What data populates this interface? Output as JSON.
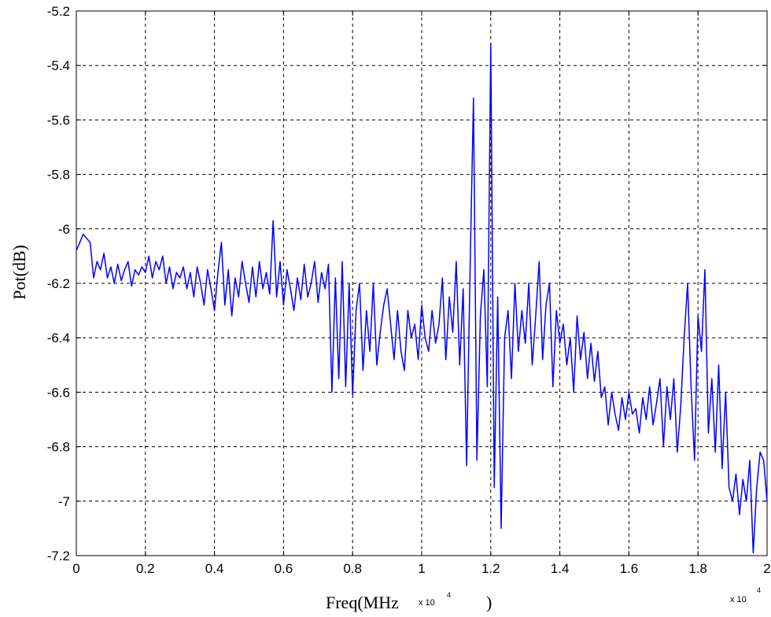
{
  "chart_data": {
    "type": "line",
    "title": "",
    "xlabel_left": "Freq(MHz",
    "xlabel_mid_exp": "x 10",
    "xlabel_mid_exp_power": "4",
    "xlabel_right": ")",
    "x_multiplier_label": "x 10",
    "x_multiplier_power": "4",
    "ylabel": "Pot(dB)",
    "xlim": [
      0,
      2
    ],
    "ylim": [
      -7.2,
      -5.2
    ],
    "grid": true,
    "grid_style": "dashed",
    "x_ticks": [
      "0",
      "0.2",
      "0.4",
      "0.6",
      "0.8",
      "1",
      "1.2",
      "1.4",
      "1.6",
      "1.8",
      "2"
    ],
    "y_ticks": [
      "-5.2",
      "-5.4",
      "-5.6",
      "-5.8",
      "-6",
      "-6.2",
      "-6.4",
      "-6.6",
      "-6.8",
      "-7",
      "-7.2"
    ],
    "line_color": "#0000ff",
    "series": [
      {
        "x": [
          0,
          0.02,
          0.04,
          0.05,
          0.06,
          0.07,
          0.08,
          0.09,
          0.1,
          0.11,
          0.12,
          0.13,
          0.14,
          0.15,
          0.16,
          0.17,
          0.18,
          0.19,
          0.2,
          0.21,
          0.22,
          0.23,
          0.24,
          0.25,
          0.26,
          0.27,
          0.28,
          0.29,
          0.3,
          0.31,
          0.32,
          0.33,
          0.34,
          0.35,
          0.36,
          0.37,
          0.38,
          0.39,
          0.4,
          0.41,
          0.42,
          0.43,
          0.44,
          0.45,
          0.46,
          0.47,
          0.48,
          0.49,
          0.5,
          0.51,
          0.52,
          0.53,
          0.54,
          0.55,
          0.56,
          0.57,
          0.58,
          0.59,
          0.6,
          0.61,
          0.62,
          0.63,
          0.64,
          0.65,
          0.66,
          0.67,
          0.68,
          0.69,
          0.7,
          0.71,
          0.72,
          0.73,
          0.74,
          0.75,
          0.76,
          0.77,
          0.78,
          0.79,
          0.8,
          0.81,
          0.82,
          0.83,
          0.84,
          0.85,
          0.86,
          0.87,
          0.88,
          0.89,
          0.9,
          0.91,
          0.92,
          0.93,
          0.94,
          0.95,
          0.96,
          0.97,
          0.98,
          0.99,
          1.0,
          1.01,
          1.02,
          1.03,
          1.04,
          1.05,
          1.06,
          1.07,
          1.08,
          1.09,
          1.1,
          1.11,
          1.12,
          1.13,
          1.14,
          1.15,
          1.16,
          1.17,
          1.18,
          1.19,
          1.2,
          1.21,
          1.22,
          1.23,
          1.24,
          1.25,
          1.26,
          1.27,
          1.28,
          1.29,
          1.3,
          1.31,
          1.32,
          1.33,
          1.34,
          1.35,
          1.36,
          1.37,
          1.38,
          1.39,
          1.4,
          1.41,
          1.42,
          1.43,
          1.44,
          1.45,
          1.46,
          1.47,
          1.48,
          1.49,
          1.5,
          1.51,
          1.52,
          1.53,
          1.54,
          1.55,
          1.56,
          1.57,
          1.58,
          1.59,
          1.6,
          1.61,
          1.62,
          1.63,
          1.64,
          1.65,
          1.66,
          1.67,
          1.68,
          1.69,
          1.7,
          1.71,
          1.72,
          1.73,
          1.74,
          1.75,
          1.76,
          1.77,
          1.78,
          1.79,
          1.8,
          1.81,
          1.82,
          1.83,
          1.84,
          1.85,
          1.86,
          1.87,
          1.88,
          1.89,
          1.9,
          1.91,
          1.92,
          1.93,
          1.94,
          1.95,
          1.96,
          1.97,
          1.98,
          1.99,
          2.0
        ],
        "y": [
          -6.08,
          -6.02,
          -6.05,
          -6.18,
          -6.12,
          -6.15,
          -6.09,
          -6.18,
          -6.14,
          -6.2,
          -6.13,
          -6.19,
          -6.15,
          -6.12,
          -6.21,
          -6.15,
          -6.17,
          -6.14,
          -6.16,
          -6.1,
          -6.18,
          -6.12,
          -6.15,
          -6.1,
          -6.2,
          -6.14,
          -6.22,
          -6.16,
          -6.18,
          -6.14,
          -6.22,
          -6.16,
          -6.25,
          -6.14,
          -6.2,
          -6.28,
          -6.15,
          -6.22,
          -6.3,
          -6.16,
          -6.05,
          -6.28,
          -6.15,
          -6.32,
          -6.18,
          -6.25,
          -6.12,
          -6.2,
          -6.27,
          -6.14,
          -6.25,
          -6.12,
          -6.22,
          -6.16,
          -6.24,
          -5.97,
          -6.25,
          -6.12,
          -6.28,
          -6.15,
          -6.22,
          -6.3,
          -6.18,
          -6.26,
          -6.13,
          -6.25,
          -6.2,
          -6.12,
          -6.27,
          -6.16,
          -6.22,
          -6.13,
          -6.6,
          -6.18,
          -6.55,
          -6.12,
          -6.58,
          -6.2,
          -6.61,
          -6.3,
          -6.2,
          -6.52,
          -6.3,
          -6.45,
          -6.2,
          -6.5,
          -6.38,
          -6.28,
          -6.22,
          -6.35,
          -6.48,
          -6.3,
          -6.45,
          -6.52,
          -6.3,
          -6.4,
          -6.35,
          -6.48,
          -6.28,
          -6.4,
          -6.45,
          -6.3,
          -6.42,
          -6.35,
          -6.18,
          -6.48,
          -6.25,
          -6.38,
          -6.12,
          -6.5,
          -6.22,
          -6.87,
          -6.15,
          -5.52,
          -6.85,
          -6.32,
          -6.15,
          -6.58,
          -5.32,
          -6.95,
          -6.25,
          -7.1,
          -6.4,
          -6.3,
          -6.55,
          -6.2,
          -6.45,
          -6.3,
          -6.42,
          -6.2,
          -6.5,
          -6.32,
          -6.12,
          -6.48,
          -6.28,
          -6.2,
          -6.58,
          -6.3,
          -6.42,
          -6.35,
          -6.5,
          -6.4,
          -6.6,
          -6.32,
          -6.48,
          -6.38,
          -6.55,
          -6.42,
          -6.56,
          -6.45,
          -6.62,
          -6.58,
          -6.72,
          -6.6,
          -6.68,
          -6.74,
          -6.62,
          -6.7,
          -6.6,
          -6.68,
          -6.66,
          -6.75,
          -6.62,
          -6.7,
          -6.58,
          -6.72,
          -6.64,
          -6.55,
          -6.8,
          -6.58,
          -6.7,
          -6.55,
          -6.82,
          -6.65,
          -6.4,
          -6.2,
          -6.58,
          -6.85,
          -6.32,
          -6.45,
          -6.15,
          -6.75,
          -6.55,
          -6.82,
          -6.5,
          -6.88,
          -6.6,
          -6.95,
          -7.0,
          -6.9,
          -7.05,
          -6.92,
          -7.0,
          -6.85,
          -7.19,
          -6.95,
          -6.82,
          -6.85,
          -7.0
        ]
      }
    ]
  }
}
